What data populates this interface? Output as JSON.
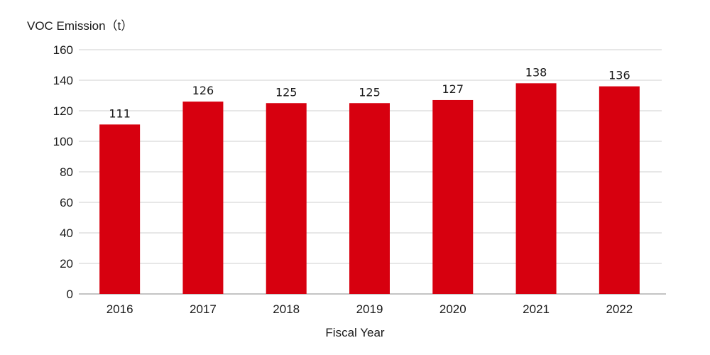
{
  "chart_data": {
    "type": "bar",
    "ylabel": "VOC Emission（t）",
    "xlabel": "Fiscal Year",
    "categories": [
      "2016",
      "2017",
      "2018",
      "2019",
      "2020",
      "2021",
      "2022"
    ],
    "values": [
      111,
      126,
      125,
      125,
      127,
      138,
      136
    ],
    "ylim": [
      0,
      160
    ],
    "yticks": [
      0,
      20,
      40,
      60,
      80,
      100,
      120,
      140,
      160
    ],
    "grid": true,
    "bar_color": "#d7000f",
    "data_labels": true
  }
}
